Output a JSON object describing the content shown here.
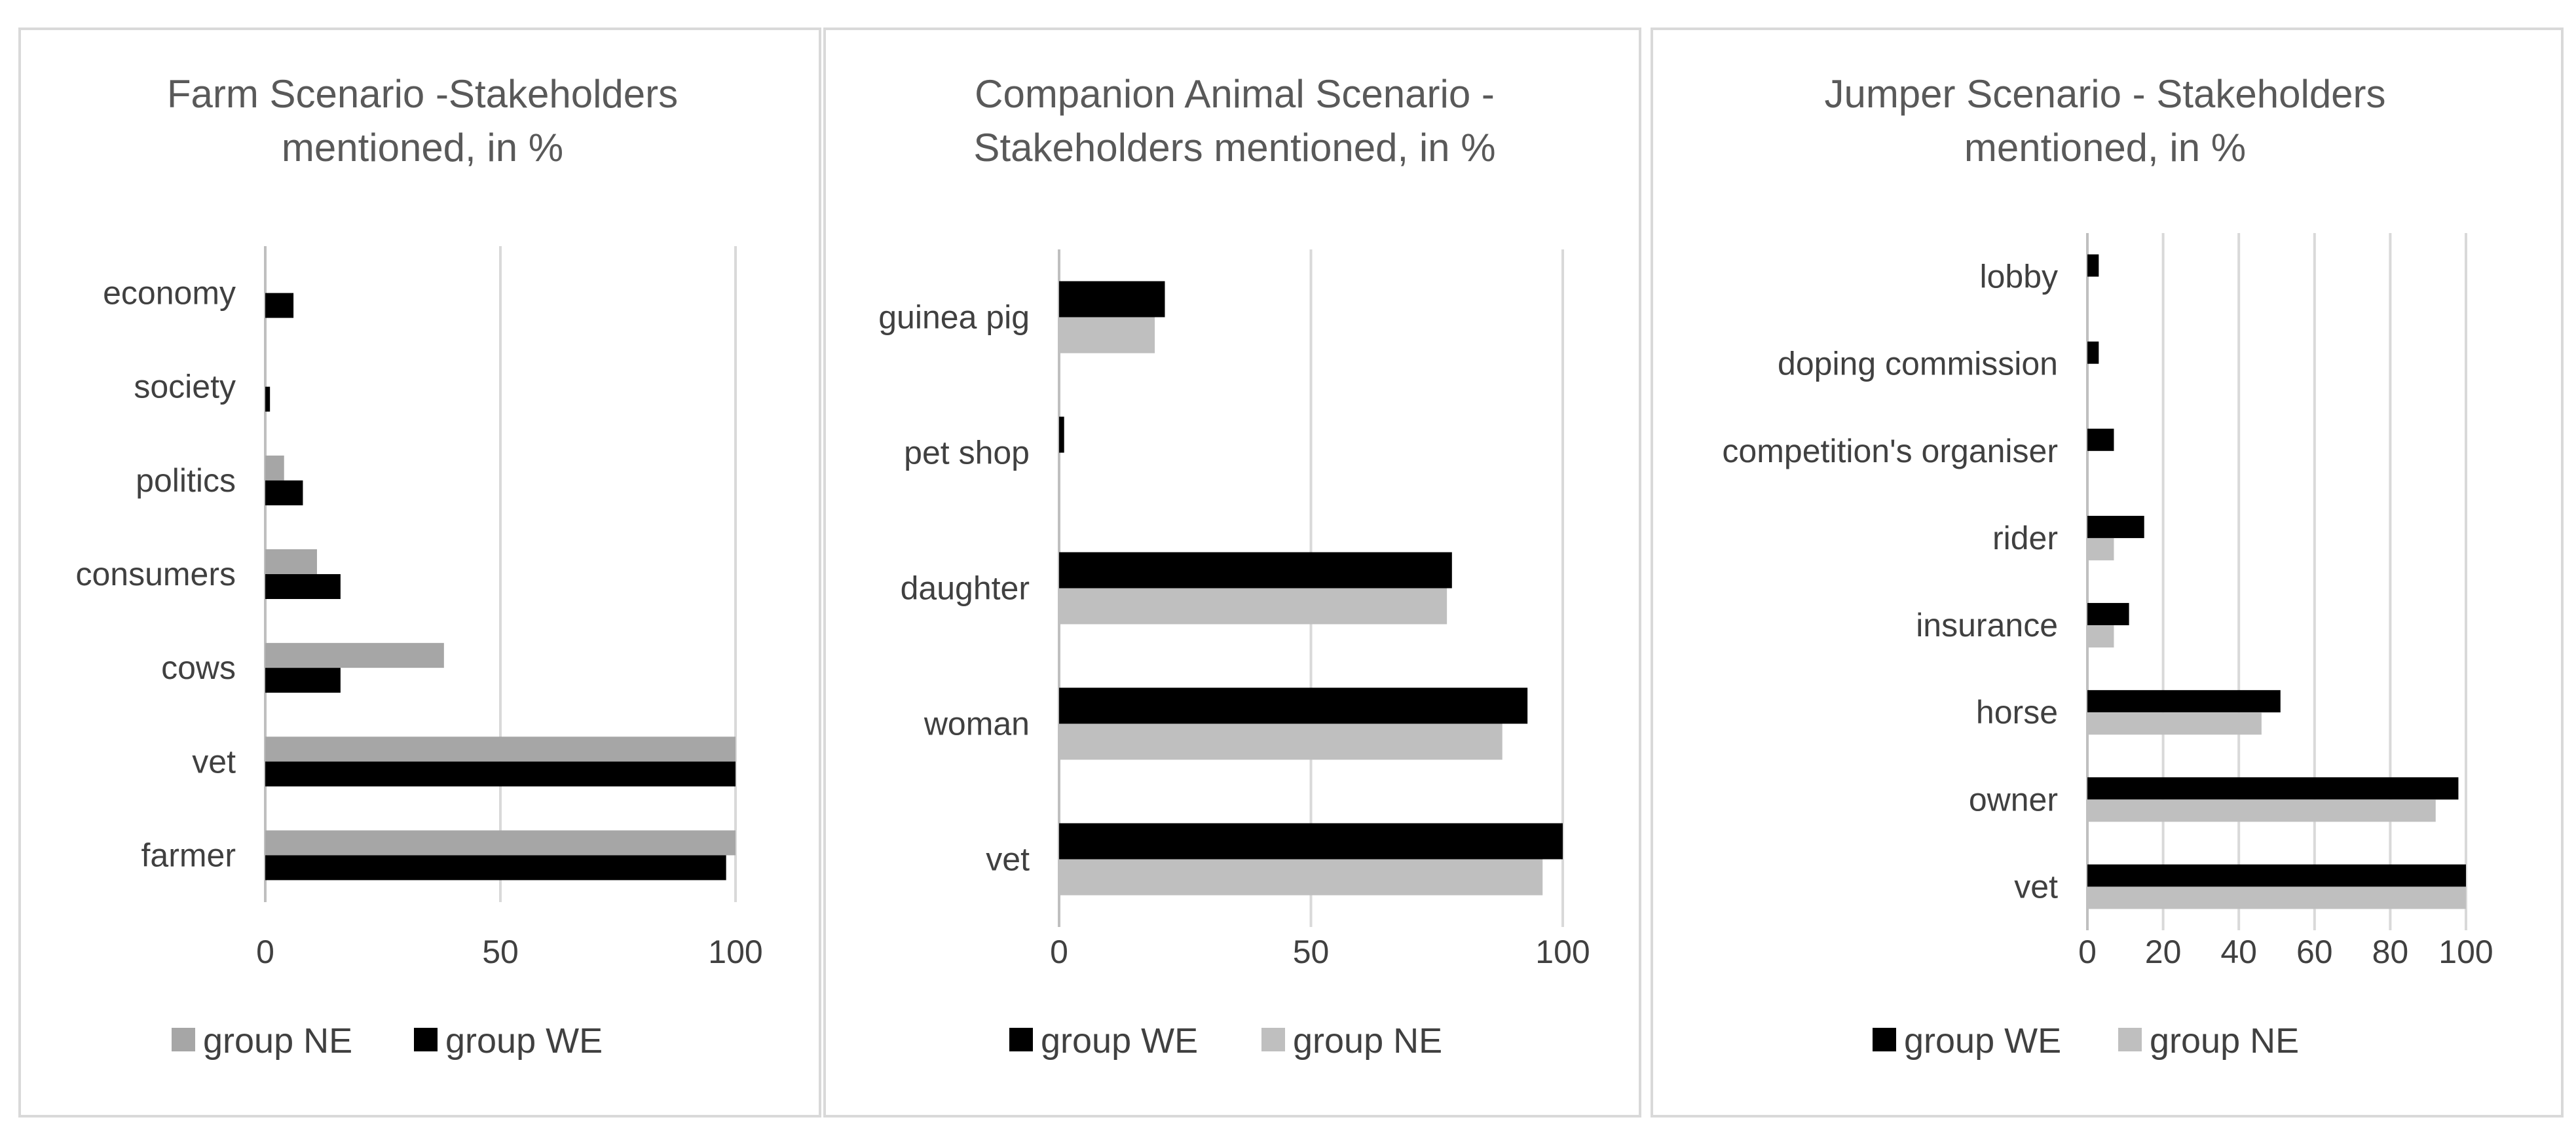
{
  "chart_data": [
    {
      "type": "bar",
      "orientation": "horizontal",
      "title_lines": [
        "Farm Scenario -Stakeholders",
        "mentioned, in %"
      ],
      "categories": [
        "economy",
        "society",
        "politics",
        "consumers",
        "cows",
        "vet",
        "farmer"
      ],
      "series": [
        {
          "name": "group NE",
          "color": "#a6a6a6",
          "values": [
            0,
            0,
            4,
            11,
            38,
            100,
            100
          ]
        },
        {
          "name": "group WE",
          "color": "#000000",
          "values": [
            6,
            1,
            8,
            16,
            16,
            100,
            98
          ]
        }
      ],
      "xlim": [
        0,
        100
      ],
      "xticks": [
        0,
        50,
        100
      ],
      "legend": {
        "position": "bottom",
        "order": [
          "group NE",
          "group WE"
        ]
      },
      "grid": true
    },
    {
      "type": "bar",
      "orientation": "horizontal",
      "title_lines": [
        "Companion Animal Scenario -",
        "Stakeholders mentioned, in %"
      ],
      "categories": [
        "guinea pig",
        "pet shop",
        "daughter",
        "woman",
        "vet"
      ],
      "series": [
        {
          "name": "group WE",
          "color": "#000000",
          "values": [
            21,
            1,
            78,
            93,
            100
          ]
        },
        {
          "name": "group NE",
          "color": "#bfbfbf",
          "values": [
            19,
            0,
            77,
            88,
            96
          ]
        }
      ],
      "xlim": [
        0,
        100
      ],
      "xticks": [
        0,
        50,
        100
      ],
      "legend": {
        "position": "bottom",
        "order": [
          "group WE",
          "group NE"
        ]
      },
      "grid": true
    },
    {
      "type": "bar",
      "orientation": "horizontal",
      "title_lines": [
        "Jumper Scenario - Stakeholders",
        "mentioned, in %"
      ],
      "categories": [
        "lobby",
        "doping commission",
        "competition's organiser",
        "rider",
        "insurance",
        "horse",
        "owner",
        "vet"
      ],
      "series": [
        {
          "name": "group WE",
          "color": "#000000",
          "values": [
            3,
            3,
            7,
            15,
            11,
            51,
            98,
            100
          ]
        },
        {
          "name": "group NE",
          "color": "#bfbfbf",
          "values": [
            0,
            0,
            0,
            7,
            7,
            46,
            92,
            100
          ]
        }
      ],
      "xlim": [
        0,
        100
      ],
      "xticks": [
        0,
        20,
        40,
        60,
        80,
        100
      ],
      "legend": {
        "position": "bottom",
        "order": [
          "group WE",
          "group NE"
        ]
      },
      "grid": true
    }
  ]
}
